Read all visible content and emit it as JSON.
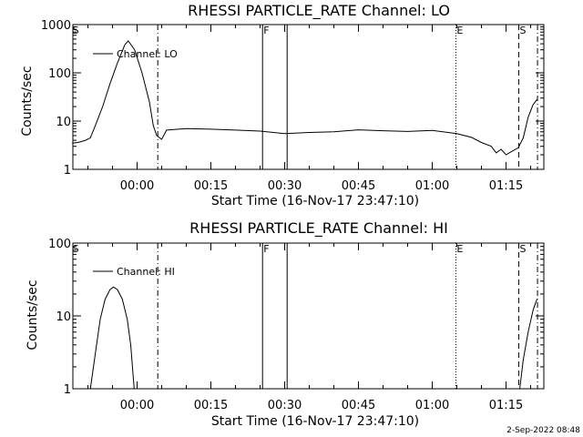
{
  "chart_data": [
    {
      "type": "line",
      "title": "RHESSI PARTICLE_RATE Channel: LO",
      "xlabel": "Start Time (16-Nov-17 23:47:10)",
      "ylabel": "Counts/sec",
      "y_scale": "log",
      "ylim": [
        1,
        1000
      ],
      "y_ticks": [
        {
          "value": 1,
          "label": "1"
        },
        {
          "value": 10,
          "label": "10"
        },
        {
          "value": 100,
          "label": "100"
        },
        {
          "value": 1000,
          "label": "1000"
        }
      ],
      "x_ticks": [
        "00:00",
        "00:15",
        "00:30",
        "00:45",
        "01:00",
        "01:15"
      ],
      "legend": {
        "entry": "Channel: LO",
        "placement": "top-left"
      },
      "markers": [
        {
          "label": "S",
          "style": "none"
        },
        {
          "label": "",
          "style": "dash-dot"
        },
        {
          "label": "F",
          "style": "solid"
        },
        {
          "label": "",
          "style": "solid"
        },
        {
          "label": "E",
          "style": "dotted"
        },
        {
          "label": "S",
          "style": "dashed"
        },
        {
          "label": "",
          "style": "dash-dot"
        }
      ],
      "series": [
        {
          "name": "Channel: LO",
          "values": [
            [
              -13.2,
              3.5
            ],
            [
              -12,
              3.6
            ],
            [
              -10.5,
              4.0
            ],
            [
              -9.5,
              4.5
            ],
            [
              -8.5,
              8
            ],
            [
              -7,
              20
            ],
            [
              -5.5,
              60
            ],
            [
              -4,
              160
            ],
            [
              -2.5,
              380
            ],
            [
              -1.8,
              460
            ],
            [
              -0.5,
              300
            ],
            [
              1,
              100
            ],
            [
              2.5,
              25
            ],
            [
              3.3,
              8
            ],
            [
              4,
              5
            ],
            [
              5,
              4.2
            ],
            [
              6,
              6.5
            ],
            [
              10,
              7
            ],
            [
              15,
              6.8
            ],
            [
              20,
              6.5
            ],
            [
              25,
              6.2
            ],
            [
              30,
              5.5
            ],
            [
              35,
              5.8
            ],
            [
              40,
              6
            ],
            [
              45,
              6.6
            ],
            [
              50,
              6.3
            ],
            [
              55,
              6.1
            ],
            [
              60,
              6.4
            ],
            [
              65,
              5.5
            ],
            [
              68,
              4.6
            ],
            [
              70,
              3.6
            ],
            [
              72,
              3
            ],
            [
              73,
              2.2
            ],
            [
              74,
              2.6
            ],
            [
              75,
              2.0
            ],
            [
              76,
              2.3
            ],
            [
              77.5,
              2.8
            ],
            [
              78.5,
              4.5
            ],
            [
              79.5,
              12
            ],
            [
              80.5,
              22
            ],
            [
              81.3,
              28
            ]
          ]
        }
      ]
    },
    {
      "type": "line",
      "title": "RHESSI PARTICLE_RATE Channel: HI",
      "xlabel": "Start Time (16-Nov-17 23:47:10)",
      "ylabel": "Counts/sec",
      "y_scale": "log",
      "ylim": [
        1,
        100
      ],
      "y_ticks": [
        {
          "value": 1,
          "label": "1"
        },
        {
          "value": 10,
          "label": "10"
        },
        {
          "value": 100,
          "label": "100"
        }
      ],
      "x_ticks": [
        "00:00",
        "00:15",
        "00:30",
        "00:45",
        "01:00",
        "01:15"
      ],
      "legend": {
        "entry": "Channel: HI",
        "placement": "top-left"
      },
      "markers": [
        {
          "label": "S",
          "style": "none"
        },
        {
          "label": "",
          "style": "dash-dot"
        },
        {
          "label": "F",
          "style": "solid"
        },
        {
          "label": "",
          "style": "solid"
        },
        {
          "label": "E",
          "style": "dotted"
        },
        {
          "label": "S",
          "style": "dashed"
        },
        {
          "label": "",
          "style": "dash-dot"
        }
      ],
      "series": [
        {
          "name": "Channel: HI",
          "values": [
            [
              -9.5,
              1.0
            ],
            [
              -8.5,
              3
            ],
            [
              -7.5,
              9
            ],
            [
              -6.5,
              17
            ],
            [
              -5.5,
              23
            ],
            [
              -4.8,
              25
            ],
            [
              -4,
              23
            ],
            [
              -3,
              17
            ],
            [
              -2,
              9
            ],
            [
              -1.3,
              4
            ],
            [
              -0.6,
              1.0
            ]
          ]
        },
        {
          "name": "Channel: HI",
          "values": [
            [
              77.8,
              1.0
            ],
            [
              78.5,
              2.5
            ],
            [
              79.5,
              6
            ],
            [
              80.5,
              12
            ],
            [
              81.3,
              17
            ]
          ]
        }
      ]
    }
  ],
  "timestamp": "2-Sep-2022 08:48"
}
